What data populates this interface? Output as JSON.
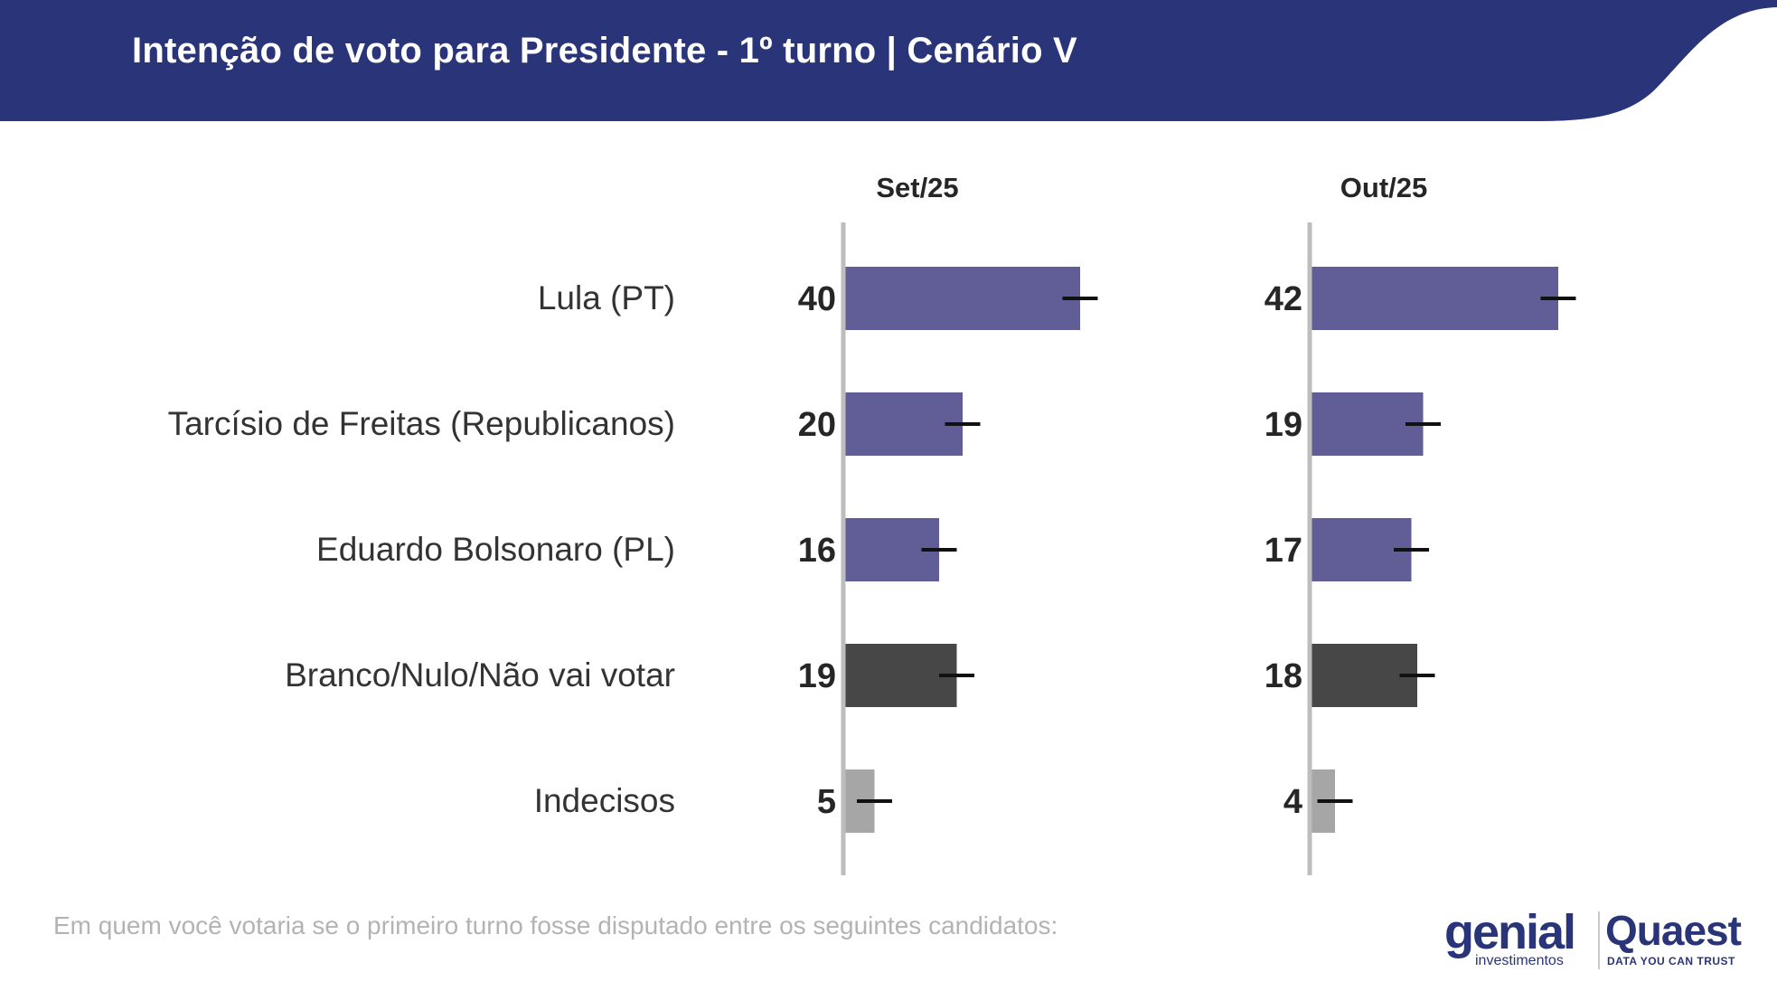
{
  "header": {
    "title": "Intenção de voto para Presidente - 1º turno | Cenário V",
    "band_color": "#2a3479"
  },
  "chart_data": {
    "type": "bar",
    "orientation": "horizontal",
    "title": "Intenção de voto para Presidente - 1º turno | Cenário V",
    "categories": [
      "Lula (PT)",
      "Tarcísio de Freitas (Republicanos)",
      "Eduardo Bolsonaro (PL)",
      "Branco/Nulo/Não vai votar",
      "Indecisos"
    ],
    "series": [
      {
        "name": "Set/25",
        "values": [
          40,
          20,
          16,
          19,
          5
        ]
      },
      {
        "name": "Out/25",
        "values": [
          42,
          19,
          17,
          18,
          4
        ]
      }
    ],
    "error_margin": 3,
    "xlim": [
      0,
      60
    ],
    "bar_colors": [
      "#615d96",
      "#615d96",
      "#615d96",
      "#474747",
      "#a6a6a6"
    ],
    "axis_color": "#bdbdbd",
    "errorbar_color": "#111111",
    "grid": false,
    "legend": "none"
  },
  "footer": {
    "question": "Em quem você votaria se o primeiro turno fosse disputado entre os seguintes candidatos:"
  },
  "logos": {
    "genial": "genial",
    "genial_sub": "investimentos",
    "quaest": "Quaest",
    "quaest_sub": "DATA YOU CAN TRUST"
  }
}
